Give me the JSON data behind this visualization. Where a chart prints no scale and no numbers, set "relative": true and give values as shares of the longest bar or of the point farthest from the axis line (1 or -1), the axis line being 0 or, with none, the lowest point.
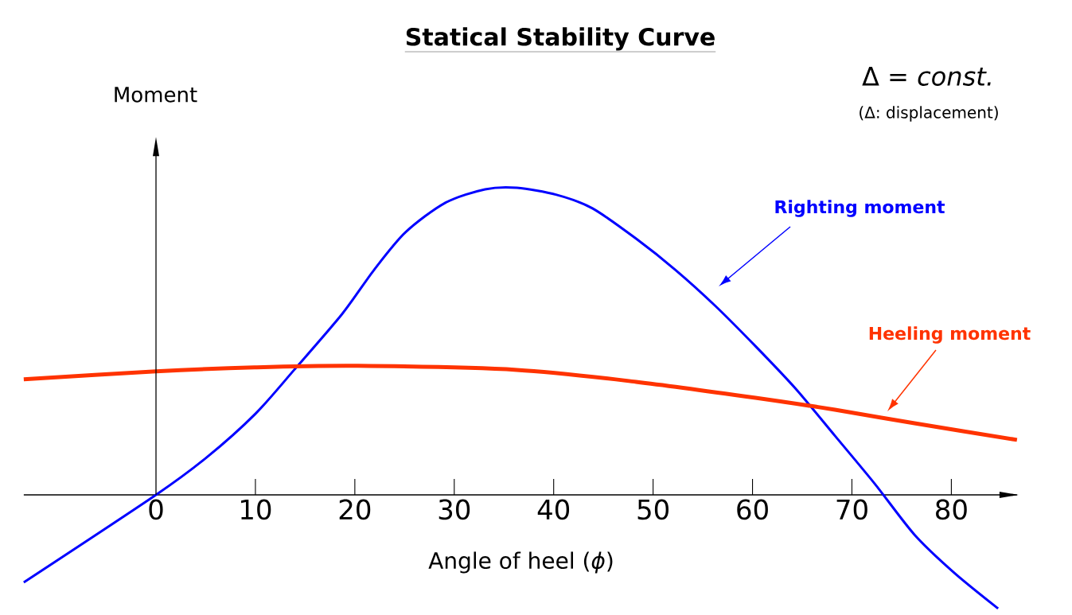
{
  "chart_data": {
    "type": "line",
    "title": "Statical Stability Curve",
    "xlabel": "Angle of heel (*ϕ*)",
    "ylabel": "Moment",
    "relative": true,
    "annotations": [
      "Δ = *const.*",
      "(Δ: displacement)"
    ],
    "series": [
      {
        "name": "Righting moment",
        "color": "#0000ff",
        "x": [
          -13.3,
          0,
          5.1,
          10,
          13.9,
          18.7,
          21.9,
          25.1,
          29.1,
          33.1,
          36.3,
          40.3,
          43.9,
          48.3,
          52.3,
          56.3,
          60.3,
          64.3,
          68.3,
          72.3,
          76.3,
          80.3,
          84.7
        ],
        "values": [
          -0.285,
          0,
          0.122,
          0.264,
          0.407,
          0.588,
          0.731,
          0.855,
          0.951,
          0.995,
          1,
          0.977,
          0.933,
          0.834,
          0.731,
          0.614,
          0.484,
          0.347,
          0.192,
          0.036,
          -0.13,
          -0.254,
          -0.37
        ]
      },
      {
        "name": "Heeling moment",
        "color": "#ff3300",
        "x": [
          -13.3,
          0,
          9.9,
          20.3,
          36.3,
          48.3,
          60.3,
          68.3,
          76.3,
          86.6
        ],
        "values": [
          0.376,
          0.402,
          0.415,
          0.42,
          0.407,
          0.368,
          0.316,
          0.277,
          0.233,
          0.179
        ]
      }
    ],
    "xlim": [
      -13.3,
      86.6
    ],
    "xticks": [
      0,
      10,
      20,
      30,
      40,
      50,
      60,
      70,
      80
    ],
    "legend": false
  }
}
